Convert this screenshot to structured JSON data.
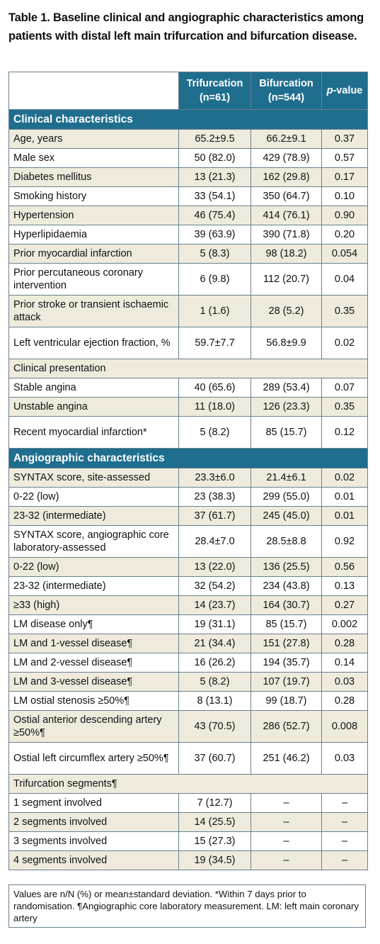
{
  "caption": "Table 1. Baseline clinical and angiographic characteristics among patients with distal left main trifurcation and bifurcation disease.",
  "header": {
    "col1": "",
    "col2": "Trifurcation (n=61)",
    "col3": "Bifurcation (n=544)",
    "col4_italic": "p",
    "col4_rest": "-value"
  },
  "sections": {
    "clinical": "Clinical characteristics",
    "angiographic": "Angiographic characteristics"
  },
  "clinical_rows": [
    {
      "label": "Age, years",
      "tri": "65.2±9.5",
      "bif": "66.2±9.1",
      "p": "0.37"
    },
    {
      "label": "Male sex",
      "tri": "50 (82.0)",
      "bif": "429 (78.9)",
      "p": "0.57"
    },
    {
      "label": "Diabetes mellitus",
      "tri": "13 (21.3)",
      "bif": "162 (29.8)",
      "p": "0.17"
    },
    {
      "label": "Smoking history",
      "tri": "33 (54.1)",
      "bif": "350 (64.7)",
      "p": "0.10"
    },
    {
      "label": "Hypertension",
      "tri": "46 (75.4)",
      "bif": "414 (76.1)",
      "p": "0.90"
    },
    {
      "label": "Hyperlipidaemia",
      "tri": "39 (63.9)",
      "bif": "390 (71.8)",
      "p": "0.20"
    },
    {
      "label": "Prior myocardial infarction",
      "tri": "5 (8.3)",
      "bif": "98 (18.2)",
      "p": "0.054"
    },
    {
      "label": "Prior percutaneous coronary intervention",
      "tri": "6 (9.8)",
      "bif": "112 (20.7)",
      "p": "0.04"
    },
    {
      "label": "Prior stroke or transient ischaemic attack",
      "tri": "1 (1.6)",
      "bif": "28 (5.2)",
      "p": "0.35"
    },
    {
      "label": "Left ventricular ejection fraction, %",
      "tri": "59.7±7.7",
      "bif": "56.8±9.9",
      "p": "0.02"
    },
    {
      "label": "Clinical presentation"
    },
    {
      "label": "Stable angina",
      "tri": "40 (65.6)",
      "bif": "289 (53.4)",
      "p": "0.07"
    },
    {
      "label": "Unstable angina",
      "tri": "11 (18.0)",
      "bif": "126 (23.3)",
      "p": "0.35"
    },
    {
      "label": "Recent myocardial infarction*",
      "tri": "5 (8.2)",
      "bif": "85 (15.7)",
      "p": "0.12"
    }
  ],
  "angio_rows": [
    {
      "label": "SYNTAX score, site-assessed",
      "tri": "23.3±6.0",
      "bif": "21.4±6.1",
      "p": "0.02"
    },
    {
      "label": "0-22 (low)",
      "tri": "23 (38.3)",
      "bif": "299 (55.0)",
      "p": "0.01"
    },
    {
      "label": "23-32 (intermediate)",
      "tri": "37 (61.7)",
      "bif": "245 (45.0)",
      "p": "0.01"
    },
    {
      "label": "SYNTAX score, angiographic core laboratory-assessed",
      "tri": "28.4±7.0",
      "bif": "28.5±8.8",
      "p": "0.92"
    },
    {
      "label": "0-22 (low)",
      "tri": "13 (22.0)",
      "bif": "136 (25.5)",
      "p": "0.56"
    },
    {
      "label": "23-32 (intermediate)",
      "tri": "32 (54.2)",
      "bif": "234 (43.8)",
      "p": "0.13"
    },
    {
      "label": "≥33 (high)",
      "tri": "14 (23.7)",
      "bif": "164 (30.7)",
      "p": "0.27"
    },
    {
      "label": "LM disease only¶",
      "tri": "19 (31.1)",
      "bif": "85 (15.7)",
      "p": "0.002"
    },
    {
      "label": "LM and 1-vessel disease¶",
      "tri": "21 (34.4)",
      "bif": "151 (27.8)",
      "p": "0.28"
    },
    {
      "label": "LM and 2-vessel disease¶",
      "tri": "16 (26.2)",
      "bif": "194 (35.7)",
      "p": "0.14"
    },
    {
      "label": "LM and 3-vessel disease¶",
      "tri": "5 (8.2)",
      "bif": "107 (19.7)",
      "p": "0.03"
    },
    {
      "label": "LM ostial stenosis ≥50%¶",
      "tri": "8 (13.1)",
      "bif": "99 (18.7)",
      "p": "0.28"
    },
    {
      "label": "Ostial anterior descending artery ≥50%¶",
      "tri": "43 (70.5)",
      "bif": "286 (52.7)",
      "p": "0.008"
    },
    {
      "label": "Ostial left circumflex artery ≥50%¶",
      "tri": "37 (60.7)",
      "bif": "251 (46.2)",
      "p": "0.03"
    },
    {
      "label": "Trifurcation segments¶"
    },
    {
      "label": "1 segment involved",
      "tri": "7 (12.7)",
      "bif": "–",
      "p": "–"
    },
    {
      "label": "2 segments involved",
      "tri": "14 (25.5)",
      "bif": "–",
      "p": "–"
    },
    {
      "label": "3 segments involved",
      "tri": "15 (27.3)",
      "bif": "–",
      "p": "–"
    },
    {
      "label": "4 segments involved",
      "tri": "19 (34.5)",
      "bif": "–",
      "p": "–"
    }
  ],
  "footnote": "Values are n/N (%) or mean±standard deviation. *Within 7 days prior to randomisation. ¶Angiographic core laboratory measurement. LM: left main coronary artery"
}
